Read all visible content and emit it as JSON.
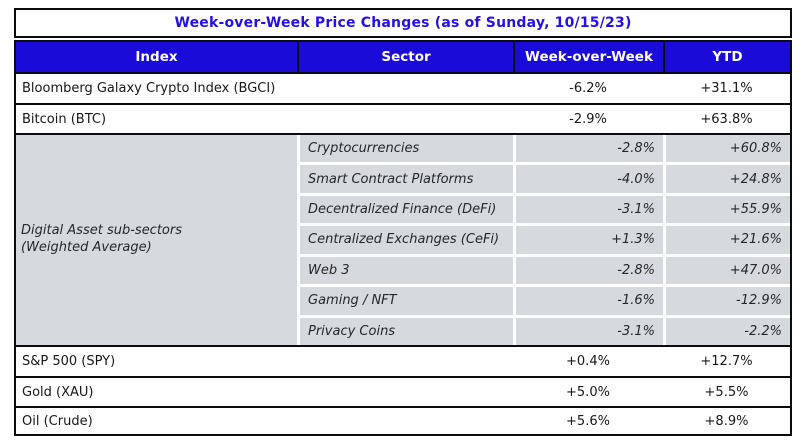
{
  "table": {
    "title": "Week-over-Week Price Changes (as of Sunday, 10/15/23)",
    "headers": {
      "index": "Index",
      "sector": "Sector",
      "wow": "Week-over-Week",
      "ytd": "YTD"
    },
    "top_rows": [
      {
        "index": "Bloomberg Galaxy Crypto Index (BGCI)",
        "wow": "-6.2%",
        "ytd": "+31.1%"
      },
      {
        "index": "Bitcoin (BTC)",
        "wow": "-2.9%",
        "ytd": "+63.8%"
      }
    ],
    "subsector_group": {
      "index_line1": "Digital Asset sub-sectors",
      "index_line2": "(Weighted Average)",
      "rows": [
        {
          "sector": "Cryptocurrencies",
          "wow": "-2.8%",
          "ytd": "+60.8%"
        },
        {
          "sector": "Smart Contract Platforms",
          "wow": "-4.0%",
          "ytd": "+24.8%"
        },
        {
          "sector": "Decentralized Finance (DeFi)",
          "wow": "-3.1%",
          "ytd": "+55.9%"
        },
        {
          "sector": "Centralized Exchanges (CeFi)",
          "wow": "+1.3%",
          "ytd": "+21.6%"
        },
        {
          "sector": "Web 3",
          "wow": "-2.8%",
          "ytd": "+47.0%"
        },
        {
          "sector": "Gaming / NFT",
          "wow": "-1.6%",
          "ytd": "-12.9%"
        },
        {
          "sector": "Privacy Coins",
          "wow": "-3.1%",
          "ytd": "-2.2%"
        }
      ]
    },
    "bottom_rows": [
      {
        "index": "S&P 500 (SPY)",
        "wow": "+0.4%",
        "ytd": "+12.7%"
      },
      {
        "index": "Gold (XAU)",
        "wow": "+5.0%",
        "ytd": "+5.5%"
      },
      {
        "index": "Oil (Crude)",
        "wow": "+5.6%",
        "ytd": "+8.9%"
      }
    ],
    "colors": {
      "header_bg": "#1b0bd8",
      "title_text": "#2410e6",
      "subsector_bg": "#d6d9de",
      "border": "#0b0b14"
    }
  },
  "chart_data": {
    "type": "table",
    "title": "Week-over-Week Price Changes (as of Sunday, 10/15/23)",
    "columns": [
      "Index",
      "Sector",
      "Week-over-Week",
      "YTD"
    ],
    "rows": [
      [
        "Bloomberg Galaxy Crypto Index (BGCI)",
        "",
        "-6.2%",
        "+31.1%"
      ],
      [
        "Bitcoin (BTC)",
        "",
        "-2.9%",
        "+63.8%"
      ],
      [
        "Digital Asset sub-sectors (Weighted Average)",
        "Cryptocurrencies",
        "-2.8%",
        "+60.8%"
      ],
      [
        "Digital Asset sub-sectors (Weighted Average)",
        "Smart Contract Platforms",
        "-4.0%",
        "+24.8%"
      ],
      [
        "Digital Asset sub-sectors (Weighted Average)",
        "Decentralized Finance (DeFi)",
        "-3.1%",
        "+55.9%"
      ],
      [
        "Digital Asset sub-sectors (Weighted Average)",
        "Centralized Exchanges (CeFi)",
        "+1.3%",
        "+21.6%"
      ],
      [
        "Digital Asset sub-sectors (Weighted Average)",
        "Web 3",
        "-2.8%",
        "+47.0%"
      ],
      [
        "Digital Asset sub-sectors (Weighted Average)",
        "Gaming / NFT",
        "-1.6%",
        "-12.9%"
      ],
      [
        "Digital Asset sub-sectors (Weighted Average)",
        "Privacy Coins",
        "-3.1%",
        "-2.2%"
      ],
      [
        "S&P 500 (SPY)",
        "",
        "+0.4%",
        "+12.7%"
      ],
      [
        "Gold (XAU)",
        "",
        "+5.0%",
        "+5.5%"
      ],
      [
        "Oil (Crude)",
        "",
        "+5.6%",
        "+8.9%"
      ]
    ]
  }
}
